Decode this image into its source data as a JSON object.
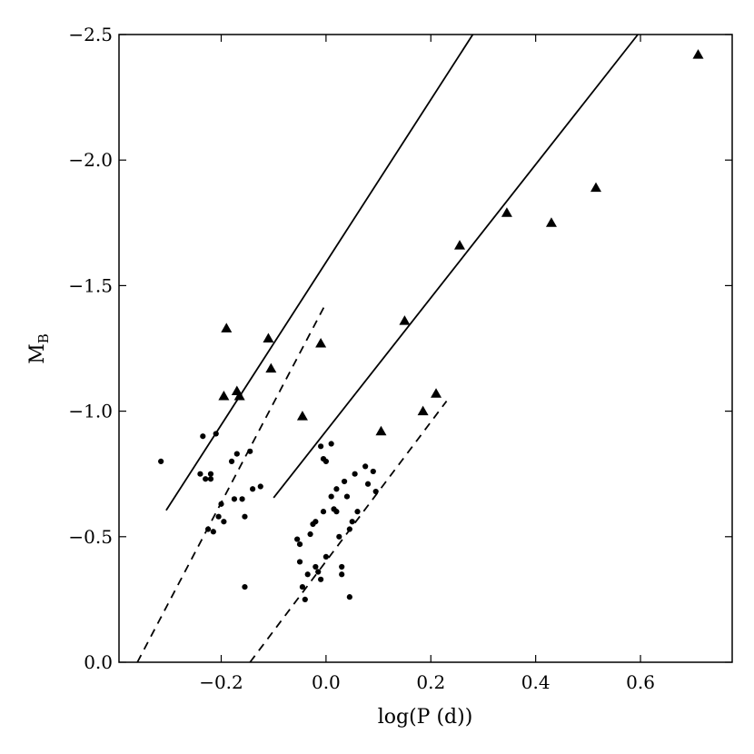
{
  "chart_data": {
    "type": "scatter",
    "xlabel": "log(P (d))",
    "ylabel_main": "M",
    "ylabel_sub": "B",
    "xlim": [
      -0.395,
      0.775
    ],
    "ylim": [
      0.0,
      -2.5
    ],
    "xticks": [
      {
        "value": -0.2,
        "label": "−0.2"
      },
      {
        "value": 0.0,
        "label": "0.0"
      },
      {
        "value": 0.2,
        "label": "0.2"
      },
      {
        "value": 0.4,
        "label": "0.4"
      },
      {
        "value": 0.6,
        "label": "0.6"
      }
    ],
    "yticks": [
      {
        "value": 0.0,
        "label": "0.0"
      },
      {
        "value": -0.5,
        "label": "−0.5"
      },
      {
        "value": -1.0,
        "label": "−1.0"
      },
      {
        "value": -1.5,
        "label": "−1.5"
      },
      {
        "value": -2.0,
        "label": "−2.0"
      },
      {
        "value": -2.5,
        "label": "−2.5"
      }
    ],
    "series": [
      {
        "marker": "triangle",
        "points": [
          [
            -0.19,
            -1.33
          ],
          [
            -0.195,
            -1.06
          ],
          [
            -0.17,
            -1.08
          ],
          [
            -0.165,
            -1.06
          ],
          [
            -0.11,
            -1.29
          ],
          [
            -0.105,
            -1.17
          ],
          [
            -0.045,
            -0.98
          ],
          [
            -0.01,
            -1.27
          ],
          [
            0.105,
            -0.92
          ],
          [
            0.15,
            -1.36
          ],
          [
            0.185,
            -1.0
          ],
          [
            0.21,
            -1.07
          ],
          [
            0.255,
            -1.66
          ],
          [
            0.345,
            -1.79
          ],
          [
            0.43,
            -1.75
          ],
          [
            0.515,
            -1.89
          ],
          [
            0.71,
            -2.42
          ]
        ]
      },
      {
        "marker": "dot",
        "points": [
          [
            -0.315,
            -0.8
          ],
          [
            -0.24,
            -0.75
          ],
          [
            -0.235,
            -0.9
          ],
          [
            -0.23,
            -0.73
          ],
          [
            -0.22,
            -0.75
          ],
          [
            -0.22,
            -0.73
          ],
          [
            -0.225,
            -0.53
          ],
          [
            -0.21,
            -0.91
          ],
          [
            -0.215,
            -0.52
          ],
          [
            -0.205,
            -0.58
          ],
          [
            -0.2,
            -0.63
          ],
          [
            -0.195,
            -0.56
          ],
          [
            -0.18,
            -0.8
          ],
          [
            -0.175,
            -0.65
          ],
          [
            -0.17,
            -0.83
          ],
          [
            -0.16,
            -0.65
          ],
          [
            -0.155,
            -0.58
          ],
          [
            -0.145,
            -0.84
          ],
          [
            -0.14,
            -0.69
          ],
          [
            -0.125,
            -0.7
          ],
          [
            -0.155,
            -0.3
          ],
          [
            -0.055,
            -0.49
          ],
          [
            -0.05,
            -0.47
          ],
          [
            -0.05,
            -0.4
          ],
          [
            -0.045,
            -0.3
          ],
          [
            -0.04,
            -0.25
          ],
          [
            -0.035,
            -0.35
          ],
          [
            -0.03,
            -0.51
          ],
          [
            -0.025,
            -0.55
          ],
          [
            -0.02,
            -0.56
          ],
          [
            -0.02,
            -0.38
          ],
          [
            -0.015,
            -0.36
          ],
          [
            -0.01,
            -0.33
          ],
          [
            -0.005,
            -0.6
          ],
          [
            -0.01,
            -0.86
          ],
          [
            -0.005,
            -0.81
          ],
          [
            0.0,
            -0.8
          ],
          [
            0.0,
            -0.42
          ],
          [
            0.01,
            -0.66
          ],
          [
            0.01,
            -0.87
          ],
          [
            0.015,
            -0.61
          ],
          [
            0.02,
            -0.69
          ],
          [
            0.02,
            -0.6
          ],
          [
            0.025,
            -0.5
          ],
          [
            0.03,
            -0.38
          ],
          [
            0.03,
            -0.35
          ],
          [
            0.035,
            -0.72
          ],
          [
            0.04,
            -0.66
          ],
          [
            0.045,
            -0.53
          ],
          [
            0.05,
            -0.56
          ],
          [
            0.055,
            -0.75
          ],
          [
            0.06,
            -0.6
          ],
          [
            0.045,
            -0.26
          ],
          [
            0.075,
            -0.78
          ],
          [
            0.08,
            -0.71
          ],
          [
            0.09,
            -0.76
          ],
          [
            0.095,
            -0.68
          ]
        ]
      }
    ],
    "lines": [
      {
        "style": "solid",
        "from": [
          -0.305,
          -0.605
        ],
        "to": [
          0.28,
          -2.5
        ]
      },
      {
        "style": "solid",
        "from": [
          -0.1,
          -0.655
        ],
        "to": [
          0.595,
          -2.5
        ]
      },
      {
        "style": "dashed",
        "from": [
          -0.36,
          0.0
        ],
        "to": [
          0.0,
          -1.43
        ]
      },
      {
        "style": "dashed",
        "from": [
          -0.145,
          0.0
        ],
        "to": [
          0.23,
          -1.04
        ]
      }
    ]
  }
}
